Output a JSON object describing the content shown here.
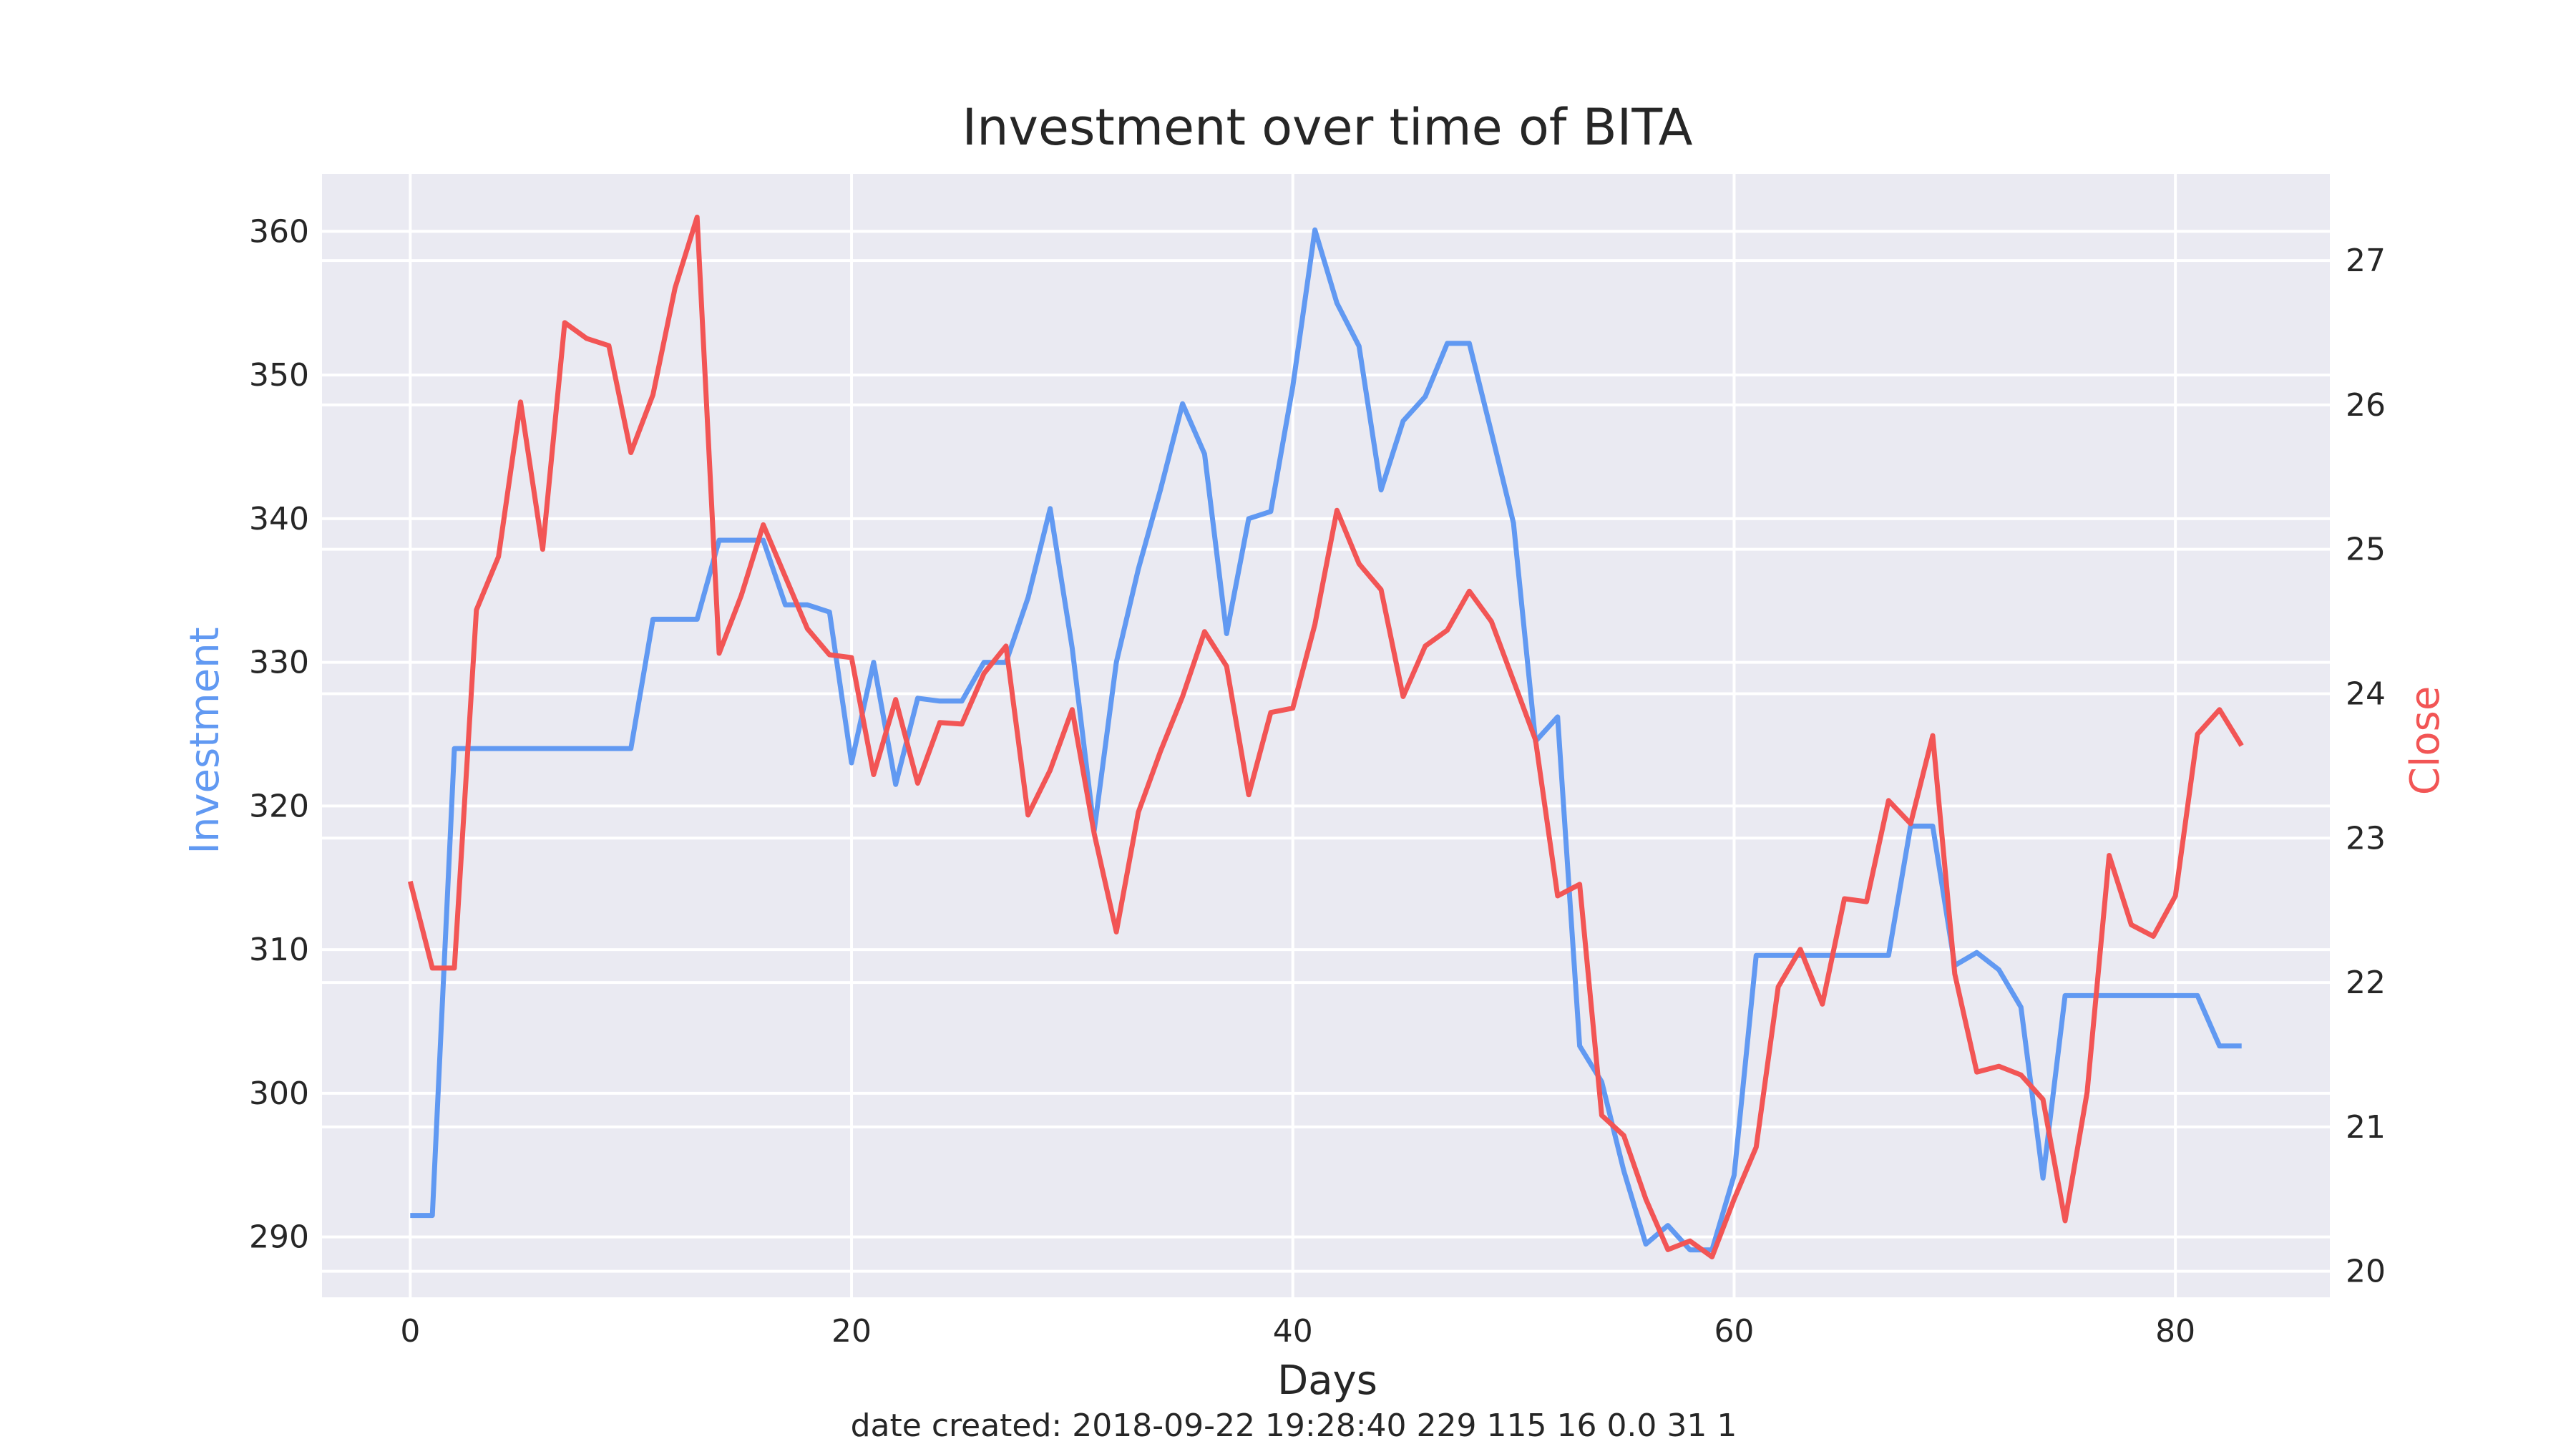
{
  "chart_data": {
    "type": "line",
    "title": "Investment over time of BITA",
    "xlabel": "Days",
    "xlim": [
      -4,
      87
    ],
    "xticks": [
      0,
      20,
      40,
      60,
      80
    ],
    "grid": true,
    "style": "seaborn-darkgrid",
    "left_axis": {
      "label": "Investment",
      "color": "#6199f2",
      "lim": [
        285.8,
        364.0
      ],
      "ticks": [
        290,
        300,
        310,
        320,
        330,
        340,
        350,
        360
      ]
    },
    "right_axis": {
      "label": "Close",
      "color": "#f25555",
      "lim": [
        19.82,
        27.6
      ],
      "ticks": [
        20,
        21,
        22,
        23,
        24,
        25,
        26,
        27
      ]
    },
    "x": [
      0,
      1,
      2,
      3,
      4,
      5,
      6,
      7,
      8,
      9,
      10,
      11,
      12,
      13,
      14,
      15,
      16,
      17,
      18,
      19,
      20,
      21,
      22,
      23,
      24,
      25,
      26,
      27,
      28,
      29,
      30,
      31,
      32,
      33,
      34,
      35,
      36,
      37,
      38,
      39,
      40,
      41,
      42,
      43,
      44,
      45,
      46,
      47,
      48,
      49,
      50,
      51,
      52,
      53,
      54,
      55,
      56,
      57,
      58,
      59,
      60,
      61,
      62,
      63,
      64,
      65,
      66,
      67,
      68,
      69,
      70,
      71,
      72,
      73,
      74,
      75,
      76,
      77,
      78,
      79,
      80,
      81,
      82,
      83
    ],
    "series": [
      {
        "name": "Investment",
        "axis": "left",
        "color": "#6199f2",
        "values": [
          291.5,
          291.5,
          324,
          324,
          324,
          324,
          324,
          324,
          324,
          324,
          324,
          333,
          333,
          333,
          338.5,
          338.5,
          338.5,
          334,
          334,
          333.5,
          323,
          330,
          321.5,
          327.5,
          327.3,
          327.3,
          330,
          330,
          334.5,
          340.7,
          331,
          318.3,
          330,
          336.5,
          342,
          348,
          344.5,
          332,
          340,
          340.5,
          349.2,
          360.1,
          355,
          352,
          342,
          346.8,
          348.5,
          352.2,
          352.2,
          346,
          339.7,
          324.5,
          326.2,
          303.3,
          300.8,
          294.6,
          289.5,
          290.8,
          289.1,
          289.1,
          294.3,
          309.6,
          309.6,
          309.6,
          309.6,
          309.6,
          309.6,
          309.6,
          318.6,
          318.6,
          308.9,
          309.8,
          308.6,
          306,
          294.1,
          306.8,
          306.8,
          306.8,
          306.8,
          306.8,
          306.8,
          306.8,
          303.3,
          303.3
        ]
      },
      {
        "name": "Close",
        "axis": "right",
        "color": "#f25555",
        "values": [
          22.7,
          22.1,
          22.1,
          24.58,
          24.95,
          26.02,
          25.0,
          26.57,
          26.46,
          26.41,
          25.67,
          26.07,
          26.81,
          27.3,
          24.28,
          24.68,
          25.17,
          24.81,
          24.45,
          24.27,
          24.25,
          23.44,
          23.96,
          23.38,
          23.8,
          23.79,
          24.14,
          24.33,
          23.16,
          23.47,
          23.89,
          23.03,
          22.35,
          23.18,
          23.6,
          23.98,
          24.43,
          24.19,
          23.3,
          23.87,
          23.9,
          24.48,
          25.27,
          24.9,
          24.72,
          23.98,
          24.33,
          24.44,
          24.71,
          24.5,
          24.09,
          23.68,
          22.6,
          22.68,
          21.08,
          20.94,
          20.5,
          20.15,
          20.21,
          20.1,
          20.5,
          20.86,
          21.97,
          22.23,
          21.85,
          22.58,
          22.56,
          23.26,
          23.1,
          23.71,
          22.06,
          21.38,
          21.42,
          21.36,
          21.19,
          20.35,
          21.24,
          22.88,
          22.4,
          22.32,
          22.6,
          23.72,
          23.89,
          23.64
        ]
      }
    ],
    "footer": "date created: 2018-09-22 19:28:40 229 115 16 0.0 31 1"
  }
}
